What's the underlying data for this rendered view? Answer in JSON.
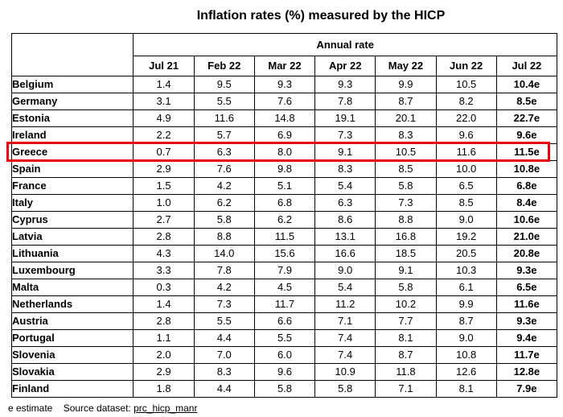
{
  "title": "Inflation rates (%) measured by the HICP",
  "header_group": "Annual rate",
  "columns": [
    "Jul 21",
    "Feb 22",
    "Mar 22",
    "Apr 22",
    "May 22",
    "Jun 22",
    "Jul 22"
  ],
  "highlight_row": "Greece",
  "highlight_color": "#e8000b",
  "footnote": {
    "estimate": "e estimate",
    "source_label": "Source dataset:",
    "source_link": "prc_hicp_manr"
  },
  "chart_data": {
    "type": "table",
    "title": "Inflation rates (%) measured by the HICP",
    "header_group": "Annual rate",
    "columns": [
      "Jul 21",
      "Feb 22",
      "Mar 22",
      "Apr 22",
      "May 22",
      "Jun 22",
      "Jul 22"
    ],
    "rows": [
      {
        "country": "Belgium",
        "values": [
          "1.4",
          "9.5",
          "9.3",
          "9.3",
          "9.9",
          "10.5",
          "10.4e"
        ]
      },
      {
        "country": "Germany",
        "values": [
          "3.1",
          "5.5",
          "7.6",
          "7.8",
          "8.7",
          "8.2",
          "8.5e"
        ]
      },
      {
        "country": "Estonia",
        "values": [
          "4.9",
          "11.6",
          "14.8",
          "19.1",
          "20.1",
          "22.0",
          "22.7e"
        ]
      },
      {
        "country": "Ireland",
        "values": [
          "2.2",
          "5.7",
          "6.9",
          "7.3",
          "8.3",
          "9.6",
          "9.6e"
        ]
      },
      {
        "country": "Greece",
        "values": [
          "0.7",
          "6.3",
          "8.0",
          "9.1",
          "10.5",
          "11.6",
          "11.5e"
        ]
      },
      {
        "country": "Spain",
        "values": [
          "2.9",
          "7.6",
          "9.8",
          "8.3",
          "8.5",
          "10.0",
          "10.8e"
        ]
      },
      {
        "country": "France",
        "values": [
          "1.5",
          "4.2",
          "5.1",
          "5.4",
          "5.8",
          "6.5",
          "6.8e"
        ]
      },
      {
        "country": "Italy",
        "values": [
          "1.0",
          "6.2",
          "6.8",
          "6.3",
          "7.3",
          "8.5",
          "8.4e"
        ]
      },
      {
        "country": "Cyprus",
        "values": [
          "2.7",
          "5.8",
          "6.2",
          "8.6",
          "8.8",
          "9.0",
          "10.6e"
        ]
      },
      {
        "country": "Latvia",
        "values": [
          "2.8",
          "8.8",
          "11.5",
          "13.1",
          "16.8",
          "19.2",
          "21.0e"
        ]
      },
      {
        "country": "Lithuania",
        "values": [
          "4.3",
          "14.0",
          "15.6",
          "16.6",
          "18.5",
          "20.5",
          "20.8e"
        ]
      },
      {
        "country": "Luxembourg",
        "values": [
          "3.3",
          "7.8",
          "7.9",
          "9.0",
          "9.1",
          "10.3",
          "9.3e"
        ]
      },
      {
        "country": "Malta",
        "values": [
          "0.3",
          "4.2",
          "4.5",
          "5.4",
          "5.8",
          "6.1",
          "6.5e"
        ]
      },
      {
        "country": "Netherlands",
        "values": [
          "1.4",
          "7.3",
          "11.7",
          "11.2",
          "10.2",
          "9.9",
          "11.6e"
        ]
      },
      {
        "country": "Austria",
        "values": [
          "2.8",
          "5.5",
          "6.6",
          "7.1",
          "7.7",
          "8.7",
          "9.3e"
        ]
      },
      {
        "country": "Portugal",
        "values": [
          "1.1",
          "4.4",
          "5.5",
          "7.4",
          "8.1",
          "9.0",
          "9.4e"
        ]
      },
      {
        "country": "Slovenia",
        "values": [
          "2.0",
          "7.0",
          "6.0",
          "7.4",
          "8.7",
          "10.8",
          "11.7e"
        ]
      },
      {
        "country": "Slovakia",
        "values": [
          "2.9",
          "8.3",
          "9.6",
          "10.9",
          "11.8",
          "12.6",
          "12.8e"
        ]
      },
      {
        "country": "Finland",
        "values": [
          "1.8",
          "4.4",
          "5.8",
          "5.8",
          "7.1",
          "8.1",
          "7.9e"
        ]
      }
    ]
  }
}
